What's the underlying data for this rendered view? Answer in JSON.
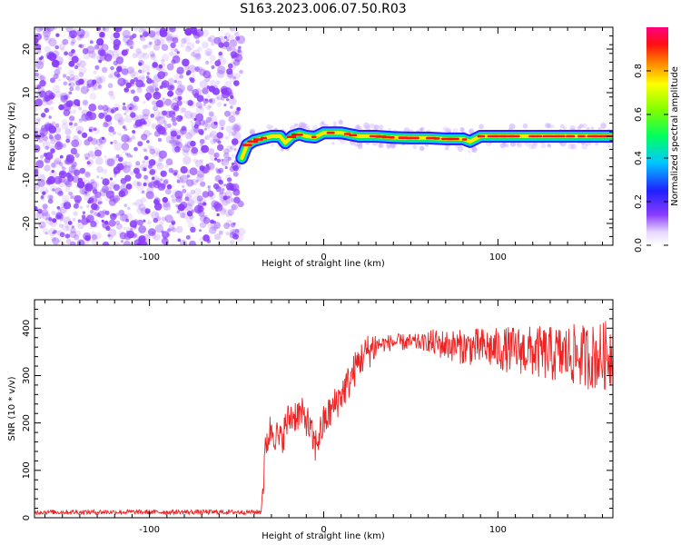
{
  "title": "S163.2023.006.07.50.R03",
  "colors": {
    "snr_line": "#ee2222",
    "noise_dots": "#8a3cff",
    "background": "#ffffff"
  },
  "chart_data": [
    {
      "type": "heatmap",
      "xlabel": "Height of straight line (km)",
      "ylabel": "Frequency (Hz)",
      "xlim": [
        -166,
        166
      ],
      "ylim": [
        -25,
        25
      ],
      "xticks": [
        -100,
        0,
        100
      ],
      "yticks": [
        -20,
        -10,
        0,
        10,
        20
      ],
      "colorbar": {
        "label": "Normalized spectral amplitude",
        "range": [
          0.0,
          1.0
        ],
        "ticks": [
          "0.0",
          "0.2",
          "0.4",
          "0.6",
          "0.8"
        ],
        "colormap": "rainbow"
      },
      "noise_region": {
        "x_from": -166,
        "x_to": -47,
        "typical_amplitude": 0.1
      },
      "signal_trace": {
        "x": [
          -47,
          -44,
          -40,
          -35,
          -30,
          -25,
          -22,
          -18,
          -14,
          -10,
          -5,
          0,
          10,
          20,
          30,
          40,
          50,
          60,
          70,
          80,
          84,
          90,
          100,
          110,
          120,
          130,
          140,
          150,
          160,
          166
        ],
        "frequency_hz": [
          -5,
          -2,
          -1,
          -0.5,
          0,
          0,
          -1.5,
          0,
          0.5,
          0,
          -0.2,
          0.8,
          0.8,
          0,
          0,
          -0.3,
          -0.4,
          -0.4,
          -0.6,
          -0.6,
          -1.2,
          0,
          0,
          0,
          0,
          0,
          0,
          0,
          0,
          0
        ],
        "peak_amplitude": 0.9
      }
    },
    {
      "type": "line",
      "xlabel": "Height of straight line (km)",
      "ylabel": "SNR (10 * v/v)",
      "xlim": [
        -166,
        166
      ],
      "ylim": [
        0,
        460
      ],
      "xticks": [
        -100,
        0,
        100
      ],
      "yticks": [
        0,
        100,
        200,
        300,
        400
      ],
      "series": [
        {
          "x": [
            -166,
            -120,
            -80,
            -50,
            -36,
            -33,
            -30,
            -25,
            -20,
            -15,
            -10,
            -5,
            0,
            5,
            10,
            15,
            20,
            25,
            30,
            40,
            50,
            60,
            70,
            80,
            90,
            100,
            110,
            120,
            130,
            140,
            150,
            160,
            166
          ],
          "values": [
            12,
            12,
            12,
            12,
            12,
            160,
            190,
            160,
            210,
            220,
            210,
            150,
            200,
            230,
            260,
            290,
            330,
            350,
            365,
            370,
            370,
            370,
            365,
            360,
            360,
            355,
            355,
            350,
            345,
            345,
            340,
            340,
            350
          ]
        }
      ]
    }
  ]
}
